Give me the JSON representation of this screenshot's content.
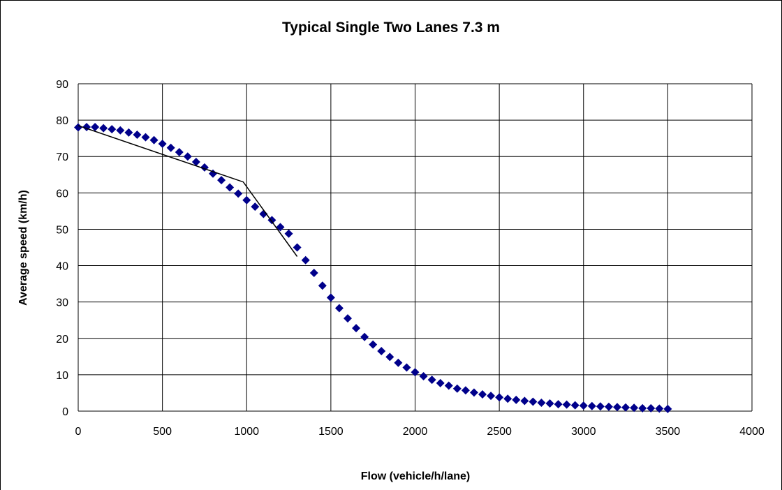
{
  "chart_data": {
    "type": "scatter",
    "title": "Typical Single Two Lanes 7.3 m",
    "xlabel": "Flow (vehicle/h/lane)",
    "ylabel": "Average speed (km/h)",
    "xlim": [
      0,
      4000
    ],
    "ylim": [
      0,
      90
    ],
    "x_ticks": [
      0,
      500,
      1000,
      1500,
      2000,
      2500,
      3000,
      3500,
      4000
    ],
    "y_ticks": [
      0,
      10,
      20,
      30,
      40,
      50,
      60,
      70,
      80,
      90
    ],
    "grid": true,
    "colors": {
      "points": "#00008B",
      "line": "#000000",
      "grid": "#000000"
    },
    "series": [
      {
        "type": "scatter",
        "marker": "diamond",
        "x": [
          0,
          50,
          100,
          150,
          200,
          250,
          300,
          350,
          400,
          450,
          500,
          550,
          600,
          650,
          700,
          750,
          800,
          850,
          900,
          950,
          1000,
          1050,
          1100,
          1150,
          1200,
          1250,
          1300,
          1350,
          1400,
          1450,
          1500,
          1550,
          1600,
          1650,
          1700,
          1750,
          1800,
          1850,
          1900,
          1950,
          2000,
          2050,
          2100,
          2150,
          2200,
          2250,
          2300,
          2350,
          2400,
          2450,
          2500,
          2550,
          2600,
          2650,
          2700,
          2750,
          2800,
          2850,
          2900,
          2950,
          3000,
          3050,
          3100,
          3150,
          3200,
          3250,
          3300,
          3350,
          3400,
          3450,
          3500
        ],
        "y": [
          78.0,
          78.1,
          78.1,
          77.8,
          77.5,
          77.2,
          76.6,
          76.0,
          75.3,
          74.5,
          73.5,
          72.4,
          71.2,
          70.0,
          68.5,
          67.0,
          65.3,
          63.5,
          61.5,
          59.8,
          58.0,
          56.2,
          54.2,
          52.5,
          50.6,
          48.8,
          45.0,
          41.5,
          38.0,
          34.5,
          31.2,
          28.3,
          25.5,
          22.8,
          20.4,
          18.3,
          16.5,
          14.9,
          13.3,
          12.0,
          10.7,
          9.6,
          8.6,
          7.7,
          7.0,
          6.2,
          5.7,
          5.1,
          4.6,
          4.2,
          3.8,
          3.4,
          3.1,
          2.8,
          2.6,
          2.3,
          2.1,
          1.9,
          1.8,
          1.6,
          1.5,
          1.4,
          1.3,
          1.2,
          1.1,
          1.0,
          0.9,
          0.8,
          0.8,
          0.7,
          0.6
        ]
      },
      {
        "type": "line",
        "x": [
          0,
          980,
          1300
        ],
        "y": [
          78.5,
          63.0,
          42.5
        ]
      }
    ]
  }
}
